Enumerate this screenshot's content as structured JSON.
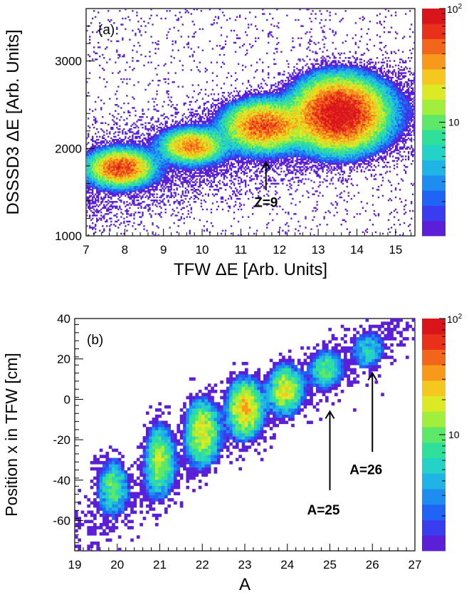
{
  "chart_data": [
    {
      "type": "heatmap",
      "panel_label": "(a)",
      "xlabel": "TFW ΔE [Arb. Units]",
      "ylabel": "DSSSD3 ΔE [Arb. Units]",
      "xlim": [
        7,
        15.5
      ],
      "ylim": [
        1000,
        3600
      ],
      "xticks": [
        7,
        8,
        9,
        10,
        11,
        12,
        13,
        14,
        15
      ],
      "yticks": [
        1000,
        2000,
        3000
      ],
      "colorbar": {
        "scale": "log",
        "range": [
          1,
          100
        ],
        "labels": [
          "10",
          "10^2"
        ]
      },
      "clusters": [
        {
          "x": 7.9,
          "y": 1780,
          "sx": 0.38,
          "sy": 95,
          "peak": 60
        },
        {
          "x": 9.75,
          "y": 2030,
          "sx": 0.38,
          "sy": 90,
          "peak": 40
        },
        {
          "x": 11.6,
          "y": 2260,
          "sx": 0.48,
          "sy": 130,
          "peak": 55
        },
        {
          "x": 13.55,
          "y": 2400,
          "sx": 0.55,
          "sy": 190,
          "peak": 100
        }
      ],
      "annotations": [
        {
          "text": "Z=9",
          "x": 11.65,
          "y": 1330,
          "arrow_from": [
            11.65,
            1520
          ],
          "arrow_to": [
            11.65,
            1840
          ]
        }
      ]
    },
    {
      "type": "heatmap",
      "panel_label": "(b)",
      "xlabel": "A",
      "ylabel": "Position x in TFW [cm]",
      "xlim": [
        19,
        27
      ],
      "ylim": [
        -75,
        40
      ],
      "xticks": [
        19,
        20,
        21,
        22,
        23,
        24,
        25,
        26,
        27
      ],
      "yticks": [
        -60,
        -40,
        -20,
        0,
        20,
        40
      ],
      "colorbar": {
        "scale": "log",
        "range": [
          1,
          100
        ],
        "labels": [
          "10",
          "10^2"
        ]
      },
      "clusters": [
        {
          "x": 19.9,
          "y": -43,
          "sx": 0.18,
          "sy": 7,
          "peak": 10
        },
        {
          "x": 21.0,
          "y": -30,
          "sx": 0.18,
          "sy": 9,
          "peak": 14
        },
        {
          "x": 22.0,
          "y": -16,
          "sx": 0.2,
          "sy": 8,
          "peak": 20
        },
        {
          "x": 23.0,
          "y": -4,
          "sx": 0.2,
          "sy": 7,
          "peak": 28
        },
        {
          "x": 23.95,
          "y": 5,
          "sx": 0.2,
          "sy": 6,
          "peak": 20
        },
        {
          "x": 24.9,
          "y": 15,
          "sx": 0.2,
          "sy": 5,
          "peak": 8
        },
        {
          "x": 25.9,
          "y": 24,
          "sx": 0.2,
          "sy": 5,
          "peak": 5
        }
      ],
      "annotations": [
        {
          "text": "A=25",
          "x": 24.85,
          "y": -57,
          "arrow_from": [
            25.0,
            -45
          ],
          "arrow_to": [
            25.0,
            -6
          ]
        },
        {
          "text": "A=26",
          "x": 25.85,
          "y": -37,
          "arrow_from": [
            26.0,
            -26
          ],
          "arrow_to": [
            26.0,
            13
          ]
        }
      ]
    }
  ]
}
